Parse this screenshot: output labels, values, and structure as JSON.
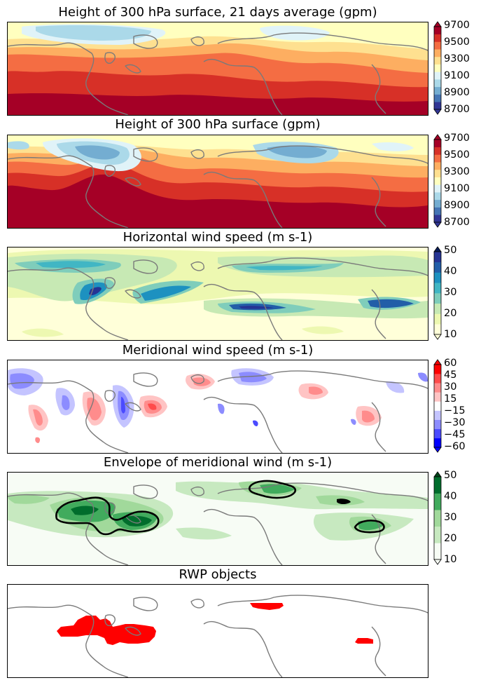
{
  "panels": [
    {
      "id": "p1",
      "title": "Height of 300 hPa surface, 21 days average (gpm)",
      "kind": "height_avg"
    },
    {
      "id": "p2",
      "title": "Height of 300 hPa surface (gpm)",
      "kind": "height_inst"
    },
    {
      "id": "p3",
      "title": "Horizontal wind speed (m s-1)",
      "kind": "wind"
    },
    {
      "id": "p4",
      "title": "Meridional wind speed (m s-1)",
      "kind": "meridional"
    },
    {
      "id": "p5",
      "title": "Envelope of meridional wind (m s-1)",
      "kind": "envelope"
    },
    {
      "id": "p6",
      "title": "RWP objects",
      "kind": "rwp"
    }
  ],
  "colorbars": [
    {
      "panel": "p1",
      "ticks": [
        "9700",
        "9500",
        "9300",
        "9100",
        "8900",
        "8700"
      ],
      "colors": [
        "#313695",
        "#4575b4",
        "#74add1",
        "#abd9e9",
        "#e0f3f8",
        "#ffffbf",
        "#fee090",
        "#fdae61",
        "#f46d43",
        "#d73027",
        "#a50026"
      ],
      "under": "#313695",
      "over": "#a50026"
    },
    {
      "panel": "p2",
      "ticks": [
        "9700",
        "9500",
        "9300",
        "9100",
        "8900",
        "8700"
      ],
      "colors": [
        "#313695",
        "#4575b4",
        "#74add1",
        "#abd9e9",
        "#e0f3f8",
        "#ffffbf",
        "#fee090",
        "#fdae61",
        "#f46d43",
        "#d73027",
        "#a50026"
      ],
      "under": "#313695",
      "over": "#a50026"
    },
    {
      "panel": "p3",
      "ticks": [
        "50",
        "40",
        "30",
        "20",
        "10"
      ],
      "colors": [
        "#ffffd9",
        "#edf8b1",
        "#c7e9b4",
        "#7fcdbb",
        "#41b6c4",
        "#1d91c0",
        "#225ea8",
        "#253494"
      ],
      "under": "#ffffd9",
      "over": "#081d58"
    },
    {
      "panel": "p4",
      "ticks": [
        "60",
        "45",
        "30",
        "15",
        "−15",
        "−30",
        "−45",
        "−60"
      ],
      "colors": [
        "#0000ff",
        "#4b4bff",
        "#8c8cff",
        "#c4c4ff",
        "#ffffff",
        "#ffc4c4",
        "#ff8c8c",
        "#ff4b4b",
        "#ff0000"
      ],
      "under": "#0000ff",
      "over": "#ff0000"
    },
    {
      "panel": "p5",
      "ticks": [
        "50",
        "40",
        "30",
        "20",
        "10"
      ],
      "colors": [
        "#f7fcf5",
        "#c7e9c0",
        "#a1d99b",
        "#41ab5d",
        "#006d2c"
      ],
      "under": "#f7fcf5",
      "over": "#00441b"
    }
  ],
  "colors": {
    "coastline": "#7a7a7a",
    "rwp_object": "#ff0000",
    "object_outline": "#000000"
  }
}
